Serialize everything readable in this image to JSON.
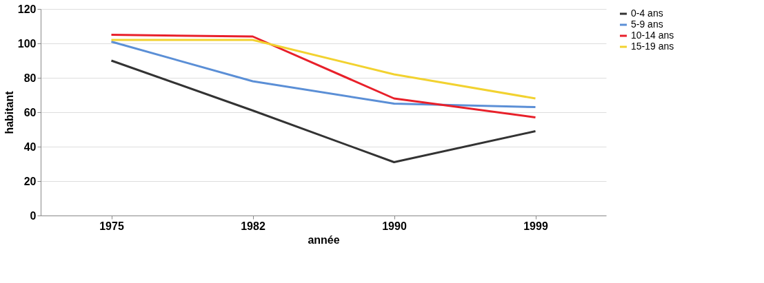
{
  "chart_data": {
    "type": "line",
    "xlabel": "année",
    "ylabel": "habitant",
    "categories": [
      "1975",
      "1982",
      "1990",
      "1999"
    ],
    "ylim": [
      0,
      120
    ],
    "yticks": [
      0,
      20,
      40,
      60,
      80,
      100,
      120
    ],
    "grid": "y",
    "legend": "right",
    "marker": "none",
    "line_style": "solid",
    "series": [
      {
        "name": "0-4 ans",
        "color": "#333333",
        "values": [
          90,
          61,
          31,
          49
        ]
      },
      {
        "name": "5-9 ans",
        "color": "#5b8fd6",
        "values": [
          101,
          78,
          65,
          63
        ]
      },
      {
        "name": "10-14 ans",
        "color": "#e8202a",
        "values": [
          105,
          104,
          68,
          57
        ]
      },
      {
        "name": "15-19 ans",
        "color": "#f2d230",
        "values": [
          102,
          102,
          82,
          68
        ]
      }
    ]
  }
}
